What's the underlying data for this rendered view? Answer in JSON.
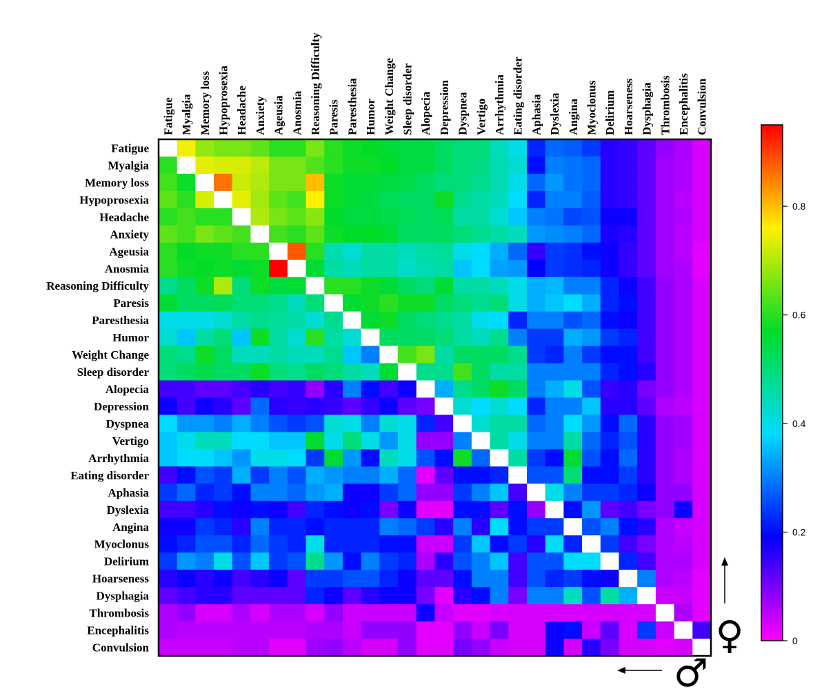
{
  "chart_data": {
    "type": "heatmap",
    "labels": [
      "Fatigue",
      "Myalgia",
      "Memory loss",
      "Hypoprosexia",
      "Headache",
      "Anxiety",
      "Ageusia",
      "Anosmia",
      "Reasoning Difficulty",
      "Paresis",
      "Paresthesia",
      "Humor",
      "Weight Change",
      "Sleep disorder",
      "Alopecia",
      "Depression",
      "Dyspnea",
      "Vertigo",
      "Arrhythmia",
      "Eating disorder",
      "Aphasia",
      "Dyslexia",
      "Angina",
      "Myoclonus",
      "Delirium",
      "Hoarseness",
      "Dysphagia",
      "Thrombosis",
      "Encephalitis",
      "Convulsion"
    ],
    "values": [
      [
        1,
        0.75,
        0.68,
        0.66,
        0.66,
        0.64,
        0.6,
        0.6,
        0.66,
        0.6,
        0.58,
        0.57,
        0.56,
        0.55,
        0.55,
        0.52,
        0.5,
        0.5,
        0.44,
        0.4,
        0.22,
        0.28,
        0.27,
        0.24,
        0.16,
        0.15,
        0.12,
        0.08,
        0.06,
        0.03
      ],
      [
        0.6,
        1,
        0.74,
        0.73,
        0.73,
        0.71,
        0.66,
        0.66,
        0.63,
        0.6,
        0.58,
        0.58,
        0.57,
        0.55,
        0.55,
        0.52,
        0.5,
        0.49,
        0.45,
        0.42,
        0.2,
        0.3,
        0.29,
        0.28,
        0.16,
        0.15,
        0.12,
        0.07,
        0.06,
        0.03
      ],
      [
        0.62,
        0.58,
        1,
        0.86,
        0.72,
        0.7,
        0.66,
        0.66,
        0.8,
        0.58,
        0.56,
        0.56,
        0.55,
        0.54,
        0.52,
        0.5,
        0.5,
        0.48,
        0.45,
        0.4,
        0.28,
        0.32,
        0.29,
        0.28,
        0.16,
        0.15,
        0.12,
        0.07,
        0.06,
        0.03
      ],
      [
        0.64,
        0.6,
        0.73,
        1,
        0.74,
        0.69,
        0.64,
        0.62,
        0.76,
        0.58,
        0.56,
        0.55,
        0.53,
        0.52,
        0.52,
        0.58,
        0.48,
        0.46,
        0.44,
        0.38,
        0.22,
        0.3,
        0.3,
        0.27,
        0.16,
        0.15,
        0.12,
        0.07,
        0.05,
        0.03
      ],
      [
        0.6,
        0.62,
        0.6,
        0.6,
        1,
        0.7,
        0.66,
        0.64,
        0.67,
        0.57,
        0.55,
        0.55,
        0.54,
        0.53,
        0.52,
        0.53,
        0.46,
        0.46,
        0.42,
        0.36,
        0.3,
        0.29,
        0.25,
        0.26,
        0.18,
        0.18,
        0.12,
        0.07,
        0.06,
        0.03
      ],
      [
        0.64,
        0.62,
        0.66,
        0.64,
        0.62,
        1,
        0.62,
        0.6,
        0.64,
        0.58,
        0.57,
        0.57,
        0.56,
        0.52,
        0.52,
        0.52,
        0.5,
        0.48,
        0.46,
        0.44,
        0.32,
        0.31,
        0.3,
        0.28,
        0.17,
        0.16,
        0.12,
        0.07,
        0.05,
        0.03
      ],
      [
        0.6,
        0.57,
        0.58,
        0.58,
        0.6,
        0.6,
        1,
        0.88,
        0.6,
        0.45,
        0.42,
        0.46,
        0.46,
        0.44,
        0.46,
        0.47,
        0.4,
        0.38,
        0.34,
        0.28,
        0.15,
        0.24,
        0.23,
        0.2,
        0.18,
        0.15,
        0.12,
        0.07,
        0.05,
        0.02
      ],
      [
        0.6,
        0.58,
        0.57,
        0.58,
        0.56,
        0.58,
        0.95,
        1,
        0.56,
        0.46,
        0.44,
        0.46,
        0.46,
        0.43,
        0.45,
        0.46,
        0.36,
        0.38,
        0.33,
        0.32,
        0.19,
        0.24,
        0.23,
        0.22,
        0.18,
        0.15,
        0.12,
        0.07,
        0.06,
        0.02
      ],
      [
        0.48,
        0.52,
        0.58,
        0.7,
        0.5,
        0.58,
        0.55,
        0.56,
        1,
        0.6,
        0.6,
        0.58,
        0.56,
        0.52,
        0.5,
        0.56,
        0.46,
        0.46,
        0.44,
        0.4,
        0.34,
        0.35,
        0.3,
        0.3,
        0.22,
        0.18,
        0.14,
        0.08,
        0.06,
        0.03
      ],
      [
        0.56,
        0.52,
        0.52,
        0.53,
        0.5,
        0.5,
        0.48,
        0.44,
        0.5,
        1,
        0.56,
        0.58,
        0.6,
        0.58,
        0.58,
        0.52,
        0.5,
        0.48,
        0.5,
        0.4,
        0.34,
        0.36,
        0.38,
        0.34,
        0.22,
        0.2,
        0.14,
        0.08,
        0.06,
        0.03
      ],
      [
        0.4,
        0.4,
        0.4,
        0.42,
        0.46,
        0.48,
        0.47,
        0.46,
        0.42,
        0.48,
        1,
        0.56,
        0.58,
        0.52,
        0.5,
        0.48,
        0.46,
        0.4,
        0.38,
        0.22,
        0.3,
        0.3,
        0.26,
        0.28,
        0.2,
        0.18,
        0.14,
        0.08,
        0.06,
        0.03
      ],
      [
        0.42,
        0.36,
        0.46,
        0.5,
        0.36,
        0.58,
        0.46,
        0.42,
        0.6,
        0.46,
        0.42,
        1,
        0.52,
        0.52,
        0.52,
        0.5,
        0.46,
        0.44,
        0.48,
        0.3,
        0.24,
        0.24,
        0.34,
        0.32,
        0.24,
        0.22,
        0.14,
        0.08,
        0.06,
        0.03
      ],
      [
        0.5,
        0.48,
        0.58,
        0.52,
        0.44,
        0.44,
        0.46,
        0.44,
        0.44,
        0.48,
        0.36,
        0.3,
        1,
        0.62,
        0.66,
        0.46,
        0.52,
        0.52,
        0.52,
        0.48,
        0.24,
        0.22,
        0.3,
        0.24,
        0.2,
        0.2,
        0.14,
        0.08,
        0.06,
        0.03
      ],
      [
        0.5,
        0.52,
        0.54,
        0.52,
        0.52,
        0.58,
        0.5,
        0.48,
        0.52,
        0.5,
        0.46,
        0.44,
        0.56,
        1,
        0.48,
        0.48,
        0.62,
        0.52,
        0.46,
        0.46,
        0.3,
        0.3,
        0.3,
        0.3,
        0.22,
        0.2,
        0.16,
        0.08,
        0.06,
        0.03
      ],
      [
        0.14,
        0.14,
        0.12,
        0.12,
        0.14,
        0.16,
        0.14,
        0.15,
        0.08,
        0.16,
        0.3,
        0.2,
        0.14,
        0.18,
        1,
        0.34,
        0.48,
        0.52,
        0.58,
        0.52,
        0.3,
        0.34,
        0.4,
        0.26,
        0.15,
        0.16,
        0.1,
        0.08,
        0.06,
        0.03
      ],
      [
        0.18,
        0.14,
        0.18,
        0.16,
        0.12,
        0.28,
        0.16,
        0.15,
        0.16,
        0.15,
        0.12,
        0.15,
        0.18,
        0.12,
        0.1,
        1,
        0.42,
        0.38,
        0.42,
        0.38,
        0.22,
        0.3,
        0.3,
        0.36,
        0.16,
        0.16,
        0.12,
        0.06,
        0.05,
        0.03
      ],
      [
        0.38,
        0.32,
        0.32,
        0.3,
        0.34,
        0.3,
        0.26,
        0.24,
        0.26,
        0.42,
        0.4,
        0.3,
        0.42,
        0.4,
        0.22,
        0.14,
        1,
        0.42,
        0.46,
        0.46,
        0.28,
        0.3,
        0.38,
        0.32,
        0.2,
        0.28,
        0.16,
        0.08,
        0.07,
        0.03
      ],
      [
        0.36,
        0.4,
        0.44,
        0.44,
        0.38,
        0.38,
        0.36,
        0.36,
        0.56,
        0.4,
        0.5,
        0.4,
        0.32,
        0.4,
        0.08,
        0.08,
        0.3,
        1,
        0.46,
        0.4,
        0.3,
        0.3,
        0.46,
        0.28,
        0.22,
        0.26,
        0.16,
        0.08,
        0.07,
        0.03
      ],
      [
        0.36,
        0.38,
        0.38,
        0.36,
        0.32,
        0.4,
        0.4,
        0.38,
        0.24,
        0.56,
        0.32,
        0.2,
        0.44,
        0.4,
        0.26,
        0.2,
        0.58,
        0.28,
        1,
        0.46,
        0.24,
        0.2,
        0.56,
        0.26,
        0.2,
        0.28,
        0.16,
        0.08,
        0.06,
        0.03
      ],
      [
        0.14,
        0.2,
        0.26,
        0.24,
        0.34,
        0.24,
        0.3,
        0.26,
        0.34,
        0.32,
        0.3,
        0.3,
        0.34,
        0.28,
        0.02,
        0.12,
        0.2,
        0.2,
        0.22,
        1,
        0.26,
        0.26,
        0.5,
        0.2,
        0.2,
        0.24,
        0.16,
        0.08,
        0.06,
        0.03
      ],
      [
        0.24,
        0.28,
        0.22,
        0.24,
        0.2,
        0.3,
        0.3,
        0.28,
        0.32,
        0.34,
        0.18,
        0.18,
        0.24,
        0.28,
        0.08,
        0.08,
        0.24,
        0.3,
        0.36,
        0.14,
        1,
        0.4,
        0.3,
        0.24,
        0.24,
        0.22,
        0.18,
        0.08,
        0.08,
        0.03
      ],
      [
        0.14,
        0.14,
        0.16,
        0.2,
        0.18,
        0.2,
        0.18,
        0.14,
        0.22,
        0.2,
        0.18,
        0.2,
        0.1,
        0.18,
        0.02,
        0.02,
        0.2,
        0.2,
        0.12,
        0.2,
        0.08,
        1,
        0.2,
        0.32,
        0.12,
        0.14,
        0.1,
        0.08,
        0.18,
        0.03
      ],
      [
        0.18,
        0.18,
        0.24,
        0.22,
        0.16,
        0.3,
        0.22,
        0.22,
        0.2,
        0.22,
        0.22,
        0.22,
        0.3,
        0.28,
        0.24,
        0.16,
        0.3,
        0.16,
        0.38,
        0.2,
        0.24,
        0.24,
        1,
        0.26,
        0.3,
        0.2,
        0.16,
        0.06,
        0.04,
        0.03
      ],
      [
        0.2,
        0.22,
        0.26,
        0.26,
        0.22,
        0.28,
        0.24,
        0.22,
        0.4,
        0.22,
        0.22,
        0.22,
        0.2,
        0.2,
        0.04,
        0.04,
        0.24,
        0.36,
        0.2,
        0.24,
        0.16,
        0.38,
        0.22,
        1,
        0.24,
        0.14,
        0.1,
        0.06,
        0.05,
        0.03
      ],
      [
        0.24,
        0.32,
        0.3,
        0.4,
        0.26,
        0.36,
        0.24,
        0.26,
        0.48,
        0.32,
        0.2,
        0.3,
        0.24,
        0.22,
        0.06,
        0.16,
        0.26,
        0.3,
        0.36,
        0.14,
        0.26,
        0.26,
        0.38,
        0.38,
        1,
        0.22,
        0.14,
        0.06,
        0.06,
        0.03
      ],
      [
        0.16,
        0.18,
        0.16,
        0.18,
        0.14,
        0.16,
        0.18,
        0.12,
        0.24,
        0.24,
        0.26,
        0.26,
        0.22,
        0.18,
        0.12,
        0.12,
        0.2,
        0.3,
        0.3,
        0.14,
        0.26,
        0.22,
        0.24,
        0.2,
        0.18,
        1,
        0.3,
        0.06,
        0.05,
        0.02
      ],
      [
        0.12,
        0.14,
        0.16,
        0.16,
        0.12,
        0.12,
        0.12,
        0.12,
        0.22,
        0.18,
        0.12,
        0.16,
        0.18,
        0.18,
        0.1,
        0.02,
        0.16,
        0.2,
        0.3,
        0.1,
        0.3,
        0.3,
        0.44,
        0.26,
        0.46,
        0.34,
        1,
        0.04,
        0.04,
        0.02
      ],
      [
        0.06,
        0.08,
        0.03,
        0.03,
        0.06,
        0.03,
        0.06,
        0.06,
        0.03,
        0.08,
        0.04,
        0.04,
        0.04,
        0.04,
        0.18,
        0.04,
        0.02,
        0.02,
        0.03,
        0.03,
        0.03,
        0.03,
        0.03,
        0.03,
        0.03,
        0.03,
        0.03,
        1,
        0.06,
        0.02
      ],
      [
        0.06,
        0.05,
        0.05,
        0.05,
        0.05,
        0.05,
        0.05,
        0.05,
        0.06,
        0.06,
        0.04,
        0.08,
        0.08,
        0.08,
        0.02,
        0.02,
        0.08,
        0.04,
        0.1,
        0.03,
        0.03,
        0.18,
        0.2,
        0.04,
        0.12,
        0.03,
        0.24,
        0.04,
        1,
        0.14
      ],
      [
        0.04,
        0.04,
        0.04,
        0.04,
        0.05,
        0.05,
        0.02,
        0.02,
        0.07,
        0.08,
        0.05,
        0.03,
        0.03,
        0.08,
        0.02,
        0.02,
        0.1,
        0.08,
        0.04,
        0.03,
        0.03,
        0.18,
        0.03,
        0.16,
        0.1,
        0.03,
        0.03,
        0.02,
        0.03,
        1
      ]
    ],
    "diagonal": "blank",
    "colorbar": {
      "range": [
        0,
        0.95
      ],
      "ticks": [
        0,
        0.2,
        0.4,
        0.6,
        0.8
      ],
      "tick_labels": [
        "0",
        "0.2",
        "0.4",
        "0.6",
        "0.8"
      ],
      "colormap": "magenta-blue-cyan-green-yellow-red"
    }
  },
  "annotations": {
    "upper_symbol": "♀",
    "lower_symbol": "♂",
    "upper_arrow": "↑",
    "lower_arrow": "←"
  }
}
